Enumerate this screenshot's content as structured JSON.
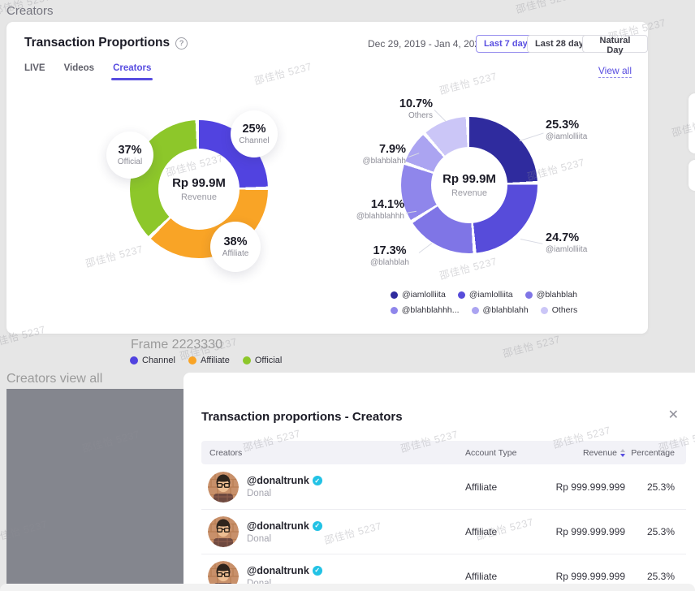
{
  "theme": {
    "accent": "#584DE0",
    "verified": "#22C2E5"
  },
  "page": {
    "top_label": "Creators",
    "frame_label": "Frame 2223330",
    "section_label": "Creators view all",
    "watermark": "邵佳怡 5237"
  },
  "card": {
    "title": "Transaction Proportions",
    "help_glyph": "?",
    "date_range": "Dec 29, 2019 - Jan 4, 2020",
    "range_buttons": [
      {
        "label": "Last 7 days",
        "active": true
      },
      {
        "label": "Last 28 days",
        "active": false
      },
      {
        "label": "Natural Day",
        "active": false
      }
    ],
    "tabs": [
      {
        "label": "LIVE",
        "active": false
      },
      {
        "label": "Videos",
        "active": false
      },
      {
        "label": "Creators",
        "active": true
      }
    ],
    "view_all": "View all"
  },
  "chart_data": [
    {
      "type": "pie",
      "name": "transaction-proportions-by-account-type",
      "center_label": "Rp 99.9M",
      "center_sublabel": "Revenue",
      "slices": [
        {
          "label": "Channel",
          "value": 25,
          "pct": "25%",
          "color": "#5143E0"
        },
        {
          "label": "Affiliate",
          "value": 38,
          "pct": "38%",
          "color": "#F9A426"
        },
        {
          "label": "Official",
          "value": 37,
          "pct": "37%",
          "color": "#8DC72A"
        }
      ]
    },
    {
      "type": "pie",
      "name": "transaction-proportions-by-creator",
      "center_label": "Rp 99.9M",
      "center_sublabel": "Revenue",
      "slices": [
        {
          "label": "@iamlolliita",
          "value": 25.3,
          "pct": "25.3%",
          "color": "#2F2B9E"
        },
        {
          "label": "@iamlolliita",
          "value": 24.7,
          "pct": "24.7%",
          "color": "#574CDA"
        },
        {
          "label": "@blahblah",
          "value": 17.3,
          "pct": "17.3%",
          "color": "#7F75E6"
        },
        {
          "label": "@blahblahhh",
          "value": 14.1,
          "pct": "14.1%",
          "color": "#8F86EB"
        },
        {
          "label": "@blahblahh",
          "value": 7.9,
          "pct": "7.9%",
          "color": "#ABA4F1"
        },
        {
          "label": "Others",
          "value": 10.7,
          "pct": "10.7%",
          "color": "#CBC6F7"
        }
      ],
      "legend": [
        "@iamlolliita",
        "@iamlolliita",
        "@blahblah",
        "@blahblahhh...",
        "@blahblahh",
        "Others"
      ]
    }
  ],
  "frame_legend": [
    {
      "label": "Channel",
      "color": "#5143E0"
    },
    {
      "label": "Affiliate",
      "color": "#F9A426"
    },
    {
      "label": "Official",
      "color": "#8DC72A"
    }
  ],
  "modal": {
    "title": "Transaction proportions - Creators",
    "close_glyph": "✕",
    "table": {
      "headers": [
        "Creators",
        "Account Type",
        "Revenue",
        "Percentage"
      ],
      "rows": [
        {
          "handle": "@donaltrunk",
          "verified_glyph": "✓",
          "name": "Donal",
          "account_type": "Affiliate",
          "revenue": "Rp 999.999.999",
          "percentage": "25.3%"
        },
        {
          "handle": "@donaltrunk",
          "verified_glyph": "✓",
          "name": "Donal",
          "account_type": "Affiliate",
          "revenue": "Rp 999.999.999",
          "percentage": "25.3%"
        },
        {
          "handle": "@donaltrunk",
          "verified_glyph": "✓",
          "name": "Donal",
          "account_type": "Affiliate",
          "revenue": "Rp 999.999.999",
          "percentage": "25.3%"
        }
      ]
    }
  }
}
